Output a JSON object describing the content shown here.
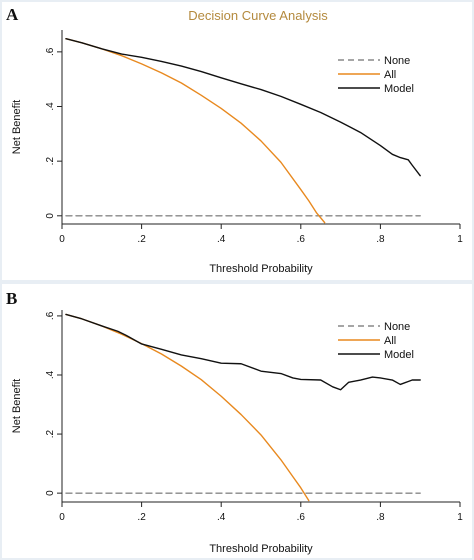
{
  "chart_data": [
    {
      "panel": "A",
      "type": "line",
      "title": "Decision Curve Analysis",
      "xlabel": "Threshold Probability",
      "ylabel": "Net Benefit",
      "xlim": [
        0,
        1
      ],
      "ylim": [
        -0.03,
        0.68
      ],
      "xticks": [
        0,
        0.2,
        0.4,
        0.6,
        0.8,
        1
      ],
      "xtick_labels": [
        "0",
        ".2",
        ".4",
        ".6",
        ".8",
        "1"
      ],
      "yticks": [
        0,
        0.2,
        0.4,
        0.6
      ],
      "ytick_labels": [
        "0",
        ".2",
        ".4",
        ".6"
      ],
      "grid": false,
      "legend": "top-right",
      "series": [
        {
          "name": "None",
          "color": "#888888",
          "dash": true,
          "x": [
            0.01,
            0.9
          ],
          "y": [
            0,
            0
          ]
        },
        {
          "name": "All",
          "color": "#e8891f",
          "dash": false,
          "x": [
            0.01,
            0.05,
            0.1,
            0.15,
            0.2,
            0.25,
            0.3,
            0.35,
            0.4,
            0.45,
            0.5,
            0.55,
            0.6,
            0.62,
            0.64,
            0.66
          ],
          "y": [
            0.648,
            0.633,
            0.611,
            0.586,
            0.556,
            0.523,
            0.486,
            0.441,
            0.393,
            0.339,
            0.274,
            0.196,
            0.096,
            0.055,
            0.01,
            -0.025
          ]
        },
        {
          "name": "Model",
          "color": "#111111",
          "dash": false,
          "x": [
            0.01,
            0.05,
            0.1,
            0.15,
            0.2,
            0.25,
            0.3,
            0.35,
            0.4,
            0.45,
            0.5,
            0.55,
            0.6,
            0.65,
            0.7,
            0.75,
            0.8,
            0.83,
            0.85,
            0.87,
            0.88,
            0.9
          ],
          "y": [
            0.648,
            0.633,
            0.611,
            0.592,
            0.58,
            0.565,
            0.548,
            0.528,
            0.505,
            0.483,
            0.462,
            0.437,
            0.408,
            0.378,
            0.343,
            0.305,
            0.257,
            0.225,
            0.213,
            0.205,
            0.185,
            0.147
          ]
        }
      ]
    },
    {
      "panel": "B",
      "type": "line",
      "title": "",
      "xlabel": "Threshold Probability",
      "ylabel": "Net Benefit",
      "xlim": [
        0,
        1
      ],
      "ylim": [
        -0.03,
        0.62
      ],
      "xticks": [
        0,
        0.2,
        0.4,
        0.6,
        0.8,
        1
      ],
      "xtick_labels": [
        "0",
        ".2",
        ".4",
        ".6",
        ".8",
        "1"
      ],
      "yticks": [
        0,
        0.2,
        0.4,
        0.6
      ],
      "ytick_labels": [
        "0",
        ".2",
        ".4",
        ".6"
      ],
      "grid": false,
      "legend": "top-right",
      "series": [
        {
          "name": "None",
          "color": "#888888",
          "dash": true,
          "x": [
            0.01,
            0.9
          ],
          "y": [
            0,
            0
          ]
        },
        {
          "name": "All",
          "color": "#e8891f",
          "dash": false,
          "x": [
            0.01,
            0.05,
            0.1,
            0.15,
            0.2,
            0.25,
            0.3,
            0.35,
            0.4,
            0.45,
            0.5,
            0.55,
            0.58,
            0.6,
            0.62
          ],
          "y": [
            0.605,
            0.59,
            0.566,
            0.538,
            0.506,
            0.471,
            0.43,
            0.384,
            0.328,
            0.266,
            0.197,
            0.113,
            0.056,
            0.018,
            -0.025
          ]
        },
        {
          "name": "Model",
          "color": "#111111",
          "dash": false,
          "x": [
            0.01,
            0.05,
            0.1,
            0.14,
            0.16,
            0.2,
            0.25,
            0.3,
            0.35,
            0.4,
            0.45,
            0.5,
            0.55,
            0.58,
            0.6,
            0.65,
            0.68,
            0.7,
            0.72,
            0.75,
            0.78,
            0.8,
            0.83,
            0.85,
            0.87,
            0.88,
            0.9
          ],
          "y": [
            0.605,
            0.59,
            0.566,
            0.548,
            0.535,
            0.505,
            0.487,
            0.468,
            0.455,
            0.44,
            0.438,
            0.413,
            0.405,
            0.39,
            0.385,
            0.383,
            0.36,
            0.35,
            0.375,
            0.383,
            0.393,
            0.39,
            0.383,
            0.368,
            0.378,
            0.383,
            0.383
          ]
        }
      ]
    }
  ]
}
